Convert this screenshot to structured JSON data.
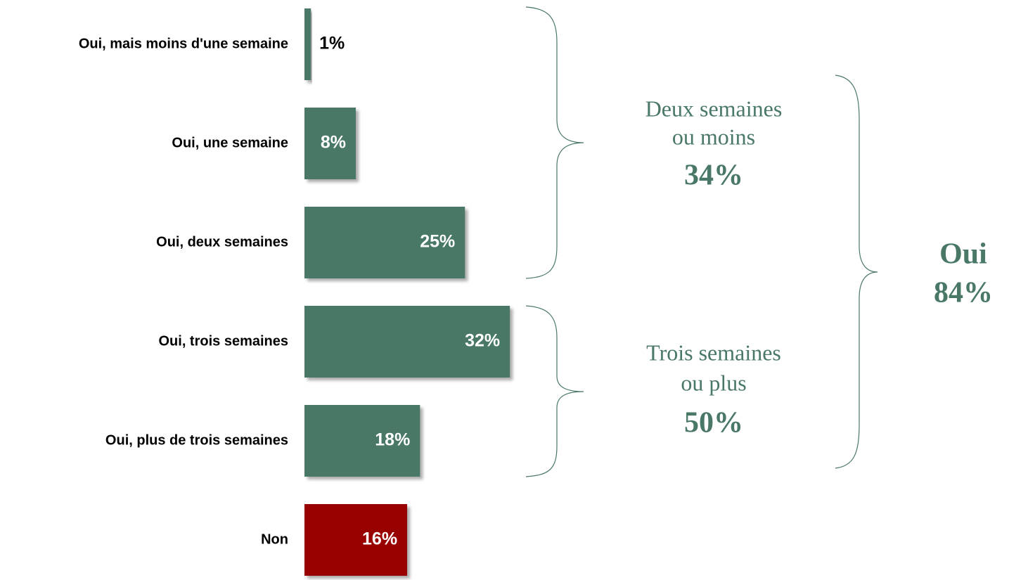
{
  "chart_data": {
    "type": "bar",
    "orientation": "horizontal",
    "categories": [
      "Oui, mais moins d'une semaine",
      "Oui, une semaine",
      "Oui, deux semaines",
      "Oui, trois semaines",
      "Oui, plus de trois semaines",
      "Non"
    ],
    "values": [
      1,
      8,
      25,
      32,
      18,
      16
    ],
    "value_labels": [
      "1%",
      "8%",
      "25%",
      "32%",
      "18%",
      "16%"
    ],
    "colors": [
      "#4a7866",
      "#4a7866",
      "#4a7866",
      "#4a7866",
      "#4a7866",
      "#990000"
    ],
    "annotations": [
      {
        "text": [
          "Deux semaines",
          "ou moins"
        ],
        "total": "34%"
      },
      {
        "text": [
          "Trois semaines",
          "ou plus"
        ],
        "total": "50%"
      },
      {
        "text": [
          "Oui"
        ],
        "total": "84%"
      }
    ]
  }
}
